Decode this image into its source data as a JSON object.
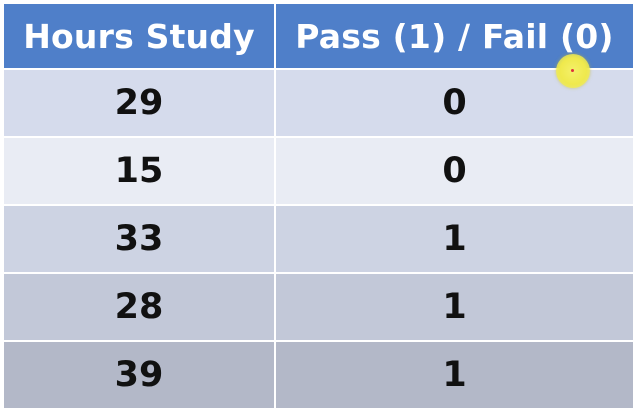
{
  "table": {
    "headers": [
      "Hours Study",
      "Pass (1) / Fail (0)"
    ],
    "rows": [
      {
        "hours": "29",
        "pass": "0"
      },
      {
        "hours": "15",
        "pass": "0"
      },
      {
        "hours": "33",
        "pass": "1"
      },
      {
        "hours": "28",
        "pass": "1"
      },
      {
        "hours": "39",
        "pass": "1"
      }
    ]
  },
  "colors": {
    "header_bg": "#4f7fc9",
    "header_text": "#ffffff",
    "cell_text": "#111111",
    "cursor_highlight": "#efe94c"
  },
  "icons": {
    "cursor": "cursor-highlight-icon"
  }
}
